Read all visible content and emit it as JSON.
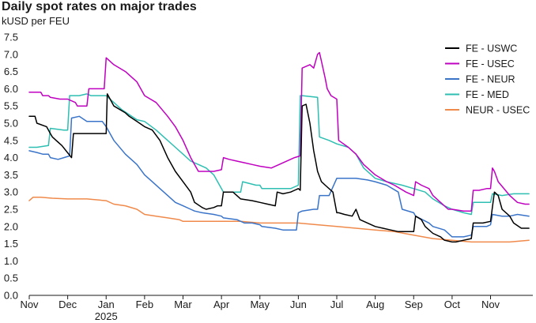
{
  "header": {
    "title": "Daily spot rates on major trades",
    "subtitle": "kUSD per FEU"
  },
  "chart_data": {
    "type": "line",
    "title": "Daily spot rates on major trades",
    "ylabel": "kUSD per FEU",
    "xlabel": "",
    "ylim": [
      0,
      7.5
    ],
    "xlim": [
      0,
      13.1
    ],
    "yticks": [
      "0.0",
      "0.5",
      "1.0",
      "1.5",
      "2.0",
      "2.5",
      "3.0",
      "3.5",
      "4.0",
      "4.5",
      "5.0",
      "5.5",
      "6.0",
      "6.5",
      "7.0",
      "7.5"
    ],
    "xticks": [
      {
        "pos": 0,
        "label": "Nov"
      },
      {
        "pos": 1,
        "label": "Dec"
      },
      {
        "pos": 2,
        "label": "Jan"
      },
      {
        "pos": 3,
        "label": "Feb"
      },
      {
        "pos": 4,
        "label": "Mar"
      },
      {
        "pos": 5,
        "label": "Apr"
      },
      {
        "pos": 6,
        "label": "May"
      },
      {
        "pos": 7,
        "label": "Jun"
      },
      {
        "pos": 8,
        "label": "Jul"
      },
      {
        "pos": 9,
        "label": "Aug"
      },
      {
        "pos": 10,
        "label": "Sep"
      },
      {
        "pos": 11,
        "label": "Oct"
      },
      {
        "pos": 12,
        "label": "Nov"
      }
    ],
    "year_label": {
      "pos": 2,
      "label": "2025"
    },
    "legend_position": "top-right",
    "grid": false,
    "series": [
      {
        "name": "FE - USWC",
        "color": "#000000",
        "x": [
          0,
          0.15,
          0.2,
          0.45,
          0.5,
          0.55,
          0.6,
          0.65,
          0.7,
          0.75,
          0.8,
          0.85,
          1.1,
          1.15,
          1.5,
          1.55,
          2.0,
          2.03,
          2.2,
          2.5,
          2.6,
          2.8,
          3.0,
          3.2,
          3.4,
          3.6,
          3.8,
          4.0,
          4.2,
          4.3,
          4.5,
          4.6,
          4.8,
          4.9,
          5.0,
          5.05,
          5.3,
          5.5,
          5.8,
          6.0,
          6.2,
          6.4,
          6.45,
          6.6,
          6.8,
          6.9,
          7.0,
          7.05,
          7.1,
          7.2,
          7.3,
          7.4,
          7.45,
          7.5,
          7.6,
          7.7,
          7.9,
          8.0,
          8.05,
          8.2,
          8.4,
          8.5,
          8.6,
          8.8,
          9.0,
          9.2,
          9.4,
          9.6,
          9.7,
          10.0,
          10.05,
          10.2,
          10.3,
          10.5,
          10.7,
          10.8,
          11.0,
          11.1,
          11.3,
          11.5,
          11.55,
          11.8,
          12.0,
          12.1,
          12.2,
          12.3,
          12.5,
          12.6,
          12.8,
          13.0
        ],
        "y": [
          5.2,
          5.2,
          5.0,
          4.9,
          4.8,
          4.7,
          4.6,
          4.55,
          4.5,
          4.45,
          4.4,
          4.35,
          4.0,
          4.7,
          4.7,
          4.7,
          4.7,
          5.85,
          5.5,
          5.3,
          5.2,
          5.05,
          4.9,
          4.8,
          4.5,
          4.0,
          3.6,
          3.3,
          3.0,
          2.7,
          2.55,
          2.5,
          2.55,
          2.6,
          2.6,
          3.0,
          3.0,
          2.8,
          2.75,
          2.7,
          2.65,
          2.6,
          3.0,
          2.95,
          3.0,
          3.05,
          3.1,
          3.05,
          5.5,
          5.55,
          5.0,
          4.2,
          3.9,
          3.6,
          3.3,
          3.2,
          3.0,
          2.4,
          2.4,
          2.35,
          2.3,
          2.5,
          2.2,
          2.1,
          2.0,
          1.95,
          1.9,
          1.85,
          1.85,
          1.85,
          2.3,
          2.2,
          2.0,
          1.8,
          1.7,
          1.6,
          1.55,
          1.55,
          1.6,
          1.65,
          2.1,
          2.1,
          2.15,
          3.0,
          2.9,
          2.5,
          2.3,
          2.1,
          1.95,
          1.95
        ]
      },
      {
        "name": "FE - USEC",
        "color": "#c000c0",
        "x": [
          0,
          0.3,
          0.35,
          0.5,
          0.55,
          0.8,
          1.0,
          1.2,
          1.25,
          1.5,
          1.55,
          1.95,
          2.0,
          2.2,
          2.5,
          2.8,
          3.0,
          3.3,
          3.6,
          3.8,
          4.0,
          4.2,
          4.4,
          4.6,
          4.8,
          5.0,
          5.05,
          5.2,
          5.4,
          5.6,
          5.8,
          6.0,
          6.3,
          6.5,
          6.9,
          7.05,
          7.1,
          7.3,
          7.4,
          7.5,
          7.55,
          7.6,
          7.7,
          7.75,
          7.85,
          8.0,
          8.05,
          8.3,
          8.5,
          8.7,
          9.0,
          9.3,
          9.5,
          9.8,
          10.0,
          10.05,
          10.2,
          10.4,
          10.5,
          10.7,
          10.9,
          11.0,
          11.3,
          11.5,
          11.55,
          11.7,
          11.9,
          12.0,
          12.05,
          12.1,
          12.2,
          12.5,
          12.7,
          12.9,
          13.0
        ],
        "y": [
          5.9,
          5.9,
          5.8,
          5.8,
          5.75,
          5.7,
          5.7,
          5.6,
          5.5,
          5.5,
          6.0,
          6.0,
          6.9,
          6.7,
          6.5,
          6.2,
          5.8,
          5.6,
          5.2,
          4.9,
          4.5,
          4.0,
          3.6,
          3.6,
          3.6,
          3.65,
          4.0,
          3.95,
          3.9,
          3.85,
          3.8,
          3.75,
          3.7,
          3.8,
          4.0,
          4.05,
          6.6,
          6.7,
          6.6,
          7.0,
          7.05,
          6.8,
          6.3,
          6.0,
          5.8,
          5.7,
          4.5,
          4.3,
          4.1,
          3.8,
          3.5,
          3.3,
          3.2,
          3.0,
          2.9,
          3.3,
          3.2,
          3.1,
          2.9,
          2.7,
          2.5,
          2.5,
          2.45,
          2.45,
          3.05,
          3.05,
          3.1,
          3.1,
          3.7,
          3.6,
          3.3,
          2.9,
          2.7,
          2.65,
          2.65
        ]
      },
      {
        "name": "FE - NEUR",
        "color": "#3a74c9",
        "x": [
          0,
          0.2,
          0.35,
          0.5,
          0.55,
          0.75,
          0.9,
          1.05,
          1.1,
          1.3,
          1.5,
          1.9,
          2.0,
          2.2,
          2.5,
          2.8,
          3.0,
          3.2,
          3.4,
          3.6,
          3.8,
          4.0,
          4.2,
          4.3,
          4.5,
          4.8,
          5.0,
          5.05,
          5.4,
          5.6,
          5.8,
          6.0,
          6.05,
          6.4,
          6.6,
          6.8,
          6.95,
          7.0,
          7.1,
          7.4,
          7.5,
          7.55,
          7.6,
          7.8,
          8.0,
          8.5,
          8.8,
          9.0,
          9.3,
          9.6,
          9.7,
          10.0,
          10.05,
          10.4,
          10.5,
          10.8,
          11.0,
          11.3,
          11.5,
          11.55,
          11.7,
          11.9,
          12.0,
          12.05,
          12.3,
          12.5,
          12.7,
          13.0
        ],
        "y": [
          4.2,
          4.15,
          4.1,
          4.1,
          4.0,
          3.95,
          4.0,
          4.05,
          5.15,
          5.2,
          5.05,
          5.05,
          4.9,
          4.5,
          4.1,
          3.8,
          3.5,
          3.3,
          3.1,
          2.9,
          2.7,
          2.6,
          2.5,
          2.45,
          2.4,
          2.35,
          2.3,
          2.25,
          2.2,
          2.1,
          2.1,
          2.05,
          2.0,
          1.95,
          1.9,
          1.9,
          1.9,
          2.4,
          2.45,
          2.5,
          2.5,
          2.9,
          2.9,
          2.9,
          3.4,
          3.4,
          3.35,
          3.3,
          3.2,
          3.0,
          2.5,
          2.4,
          2.3,
          2.1,
          2.0,
          1.9,
          1.7,
          1.7,
          1.75,
          2.0,
          2.0,
          2.0,
          2.05,
          2.35,
          2.3,
          2.3,
          2.35,
          2.3
        ]
      },
      {
        "name": "FE - MED",
        "color": "#2ebfb2",
        "x": [
          0,
          0.2,
          0.5,
          0.55,
          0.9,
          1.0,
          1.05,
          1.3,
          1.5,
          1.6,
          1.9,
          2.0,
          2.2,
          2.4,
          2.6,
          2.8,
          3.0,
          3.3,
          3.5,
          3.8,
          4.0,
          4.2,
          4.4,
          4.6,
          4.8,
          5.0,
          5.05,
          5.3,
          5.5,
          5.55,
          5.9,
          6.0,
          6.05,
          6.5,
          6.8,
          7.0,
          7.05,
          7.1,
          7.5,
          7.55,
          7.8,
          8.0,
          8.3,
          8.5,
          8.7,
          9.0,
          9.3,
          9.7,
          10.0,
          10.3,
          10.5,
          10.8,
          11.0,
          11.3,
          11.5,
          11.55,
          11.8,
          12.0,
          12.05,
          12.3,
          12.6,
          13.0
        ],
        "y": [
          4.3,
          4.3,
          4.35,
          4.85,
          4.8,
          4.8,
          5.8,
          5.8,
          5.85,
          5.8,
          5.8,
          5.8,
          5.6,
          5.4,
          5.25,
          5.1,
          5.05,
          4.8,
          4.6,
          4.3,
          4.1,
          3.9,
          3.8,
          3.7,
          3.5,
          3.1,
          3.0,
          3.0,
          3.0,
          3.3,
          3.2,
          3.2,
          3.1,
          3.1,
          3.1,
          3.2,
          5.8,
          5.8,
          5.75,
          4.6,
          4.5,
          4.4,
          4.3,
          4.1,
          3.7,
          3.4,
          3.3,
          3.2,
          3.1,
          3.0,
          2.8,
          2.6,
          2.5,
          2.4,
          2.35,
          2.7,
          2.7,
          2.7,
          2.95,
          2.9,
          2.95,
          2.95
        ]
      },
      {
        "name": "NEUR - USEC",
        "color": "#f08a4b",
        "x": [
          0,
          0.1,
          0.3,
          0.6,
          1.0,
          1.5,
          2.0,
          2.2,
          2.5,
          2.8,
          3.0,
          3.3,
          3.6,
          3.9,
          4.0,
          4.5,
          5.0,
          5.5,
          6.0,
          6.5,
          7.0,
          7.5,
          8.0,
          8.5,
          9.0,
          9.5,
          10.0,
          10.5,
          11.0,
          11.5,
          12.0,
          12.5,
          13.0
        ],
        "y": [
          2.75,
          2.85,
          2.85,
          2.82,
          2.8,
          2.8,
          2.75,
          2.65,
          2.6,
          2.5,
          2.35,
          2.3,
          2.25,
          2.2,
          2.15,
          2.15,
          2.15,
          2.15,
          2.1,
          2.1,
          2.1,
          2.05,
          2.0,
          1.95,
          1.9,
          1.85,
          1.75,
          1.65,
          1.6,
          1.55,
          1.55,
          1.55,
          1.6
        ]
      }
    ]
  }
}
